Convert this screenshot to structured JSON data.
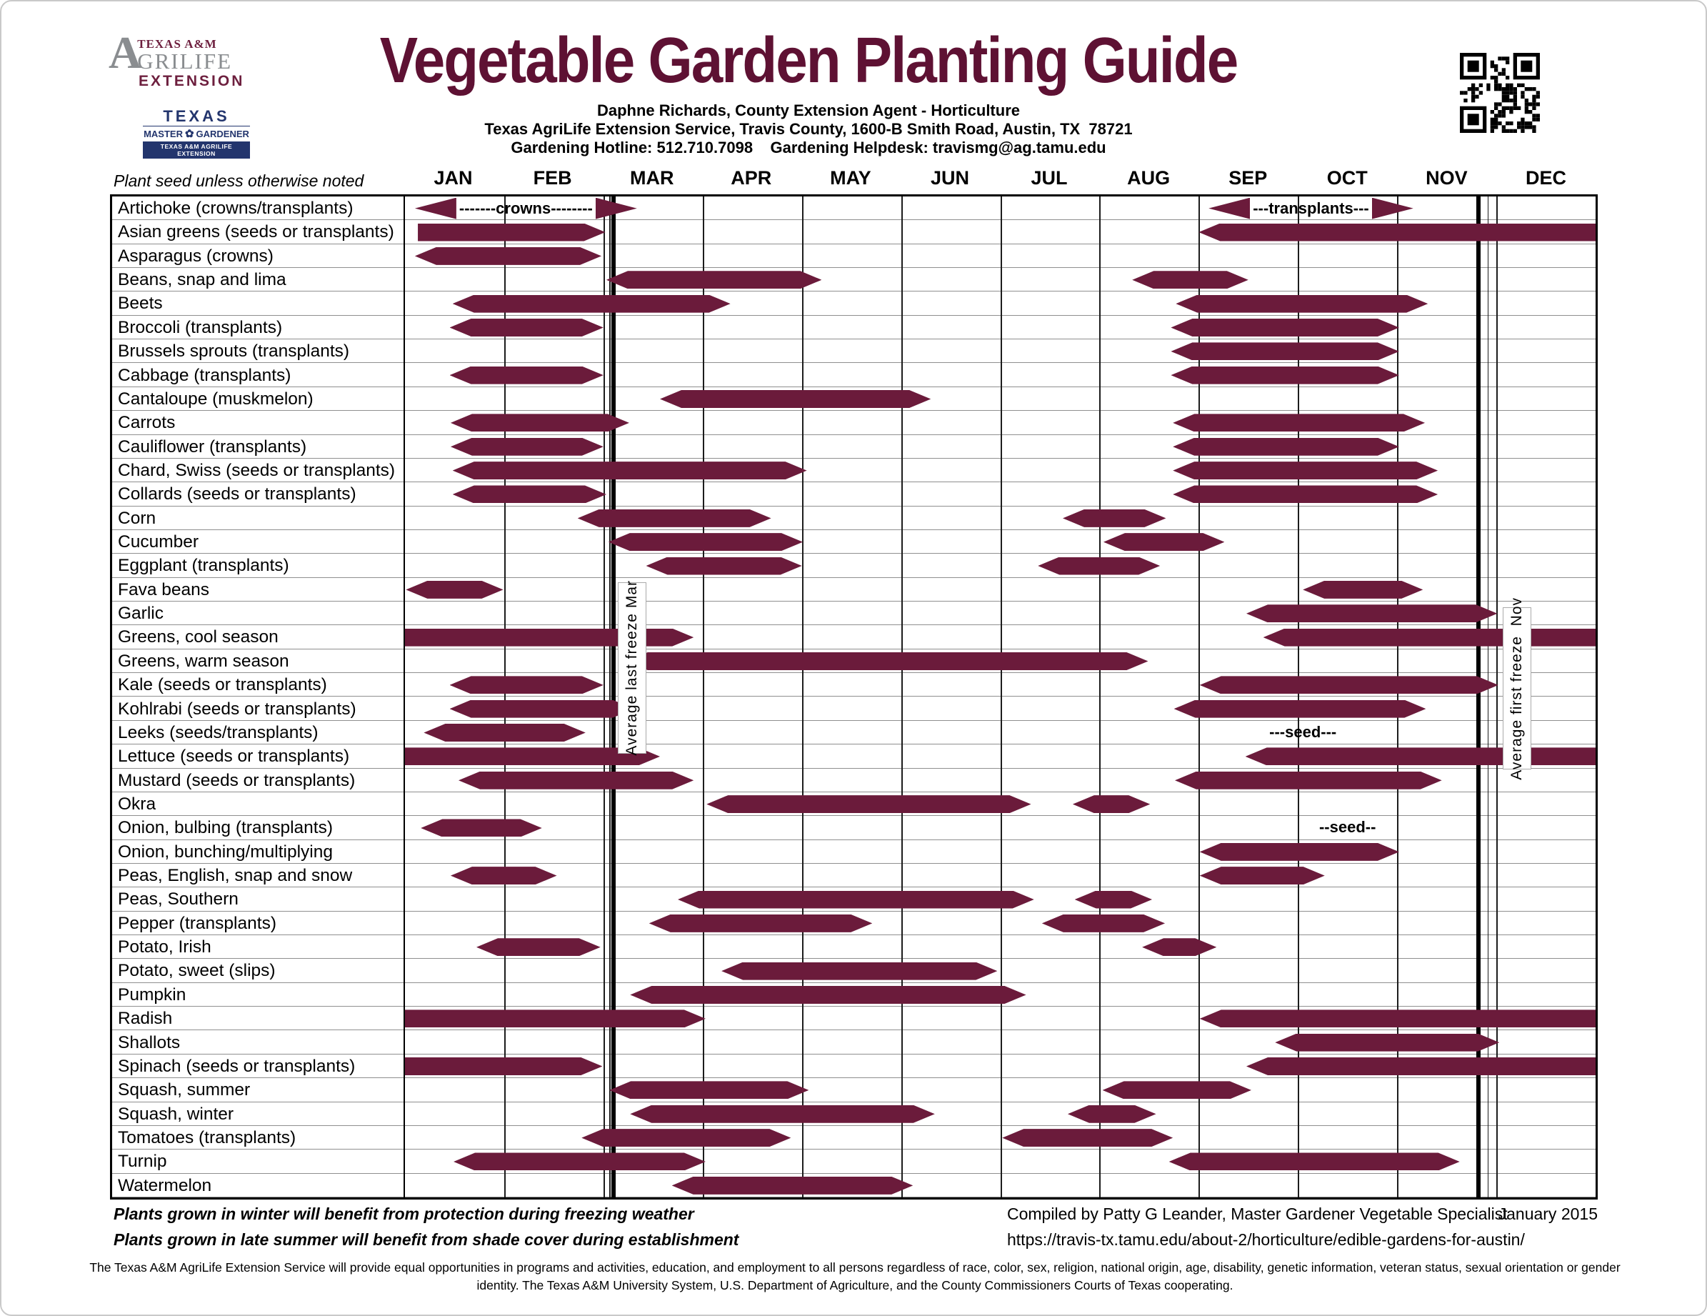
{
  "colors": {
    "bar": "#6b1b3b",
    "title": "#5e1133",
    "agrilife_maroon": "#6d1f3e",
    "agrilife_gray": "#8a8d90",
    "mg_navy": "#23356d"
  },
  "logos": {
    "agrilife": {
      "a": "A",
      "tam": "TEXAS A&M",
      "grilife": "GRILIFE",
      "extension": "EXTENSION"
    },
    "master_gardener": {
      "top": "TEXAS",
      "left": "MASTER",
      "right": "GARDENER",
      "bar": "TEXAS A&M AGRILIFE EXTENSION"
    }
  },
  "header": {
    "title": "Vegetable Garden Planting Guide",
    "subtitle1": "Daphne Richards, County Extension Agent - Horticulture",
    "subtitle2": "Texas AgriLife Extension Service, Travis County, 1600-B Smith Road, Austin, TX  78721",
    "subtitle3": "Gardening Hotline: 512.710.7098    Gardening Helpdesk: travismg@ag.tamu.edu"
  },
  "table_header": {
    "column_note": "Plant seed unless otherwise noted"
  },
  "chart_data": {
    "type": "gantt",
    "unit": "months, 0 = Jan 1, 12 = Dec 31",
    "months": [
      "JAN",
      "FEB",
      "MAR",
      "APR",
      "MAY",
      "JUN",
      "JUL",
      "AUG",
      "SEP",
      "OCT",
      "NOV",
      "DEC"
    ],
    "bar_styles_legend": {
      "both": "arrow both ends",
      "right": "flat left / arrow right",
      "left": "arrow left / flat right",
      "dashed": "opposed arrowheads with dashed text between"
    },
    "freeze_lines": [
      {
        "pos": 2.1,
        "aux_pos": 2.06,
        "label": "Average last freeze Mar",
        "label_center": 2.28,
        "label_top": 810,
        "label_height": 238
      },
      {
        "pos": 10.82,
        "aux_pos": 10.91,
        "label": "Average first freeze  Nov",
        "label_center": 11.2,
        "label_top": 845,
        "label_height": 225
      }
    ],
    "rows": [
      {
        "label": "Artichoke (crowns/transplants)",
        "bars": [
          [
            0.1,
            1.98,
            "dashed",
            "-------crowns--------"
          ],
          [
            8.1,
            9.8,
            "dashed",
            "---transplants---"
          ]
        ],
        "notes": []
      },
      {
        "label": "Asian greens (seeds or transplants)",
        "bars": [
          [
            0.13,
            2.02,
            "right"
          ],
          [
            8.0,
            12,
            "left"
          ]
        ],
        "notes": []
      },
      {
        "label": "Asparagus (crowns)",
        "bars": [
          [
            0.1,
            1.98,
            "both"
          ]
        ],
        "notes": []
      },
      {
        "label": "Beans, snap and lima",
        "bars": [
          [
            2.03,
            4.2,
            "both"
          ],
          [
            7.33,
            8.5,
            "both"
          ]
        ],
        "notes": []
      },
      {
        "label": "Beets",
        "bars": [
          [
            0.48,
            3.28,
            "both"
          ],
          [
            7.77,
            10.31,
            "both"
          ]
        ],
        "notes": []
      },
      {
        "label": "Broccoli (transplants)",
        "bars": [
          [
            0.45,
            2.0,
            "both"
          ],
          [
            7.72,
            10.02,
            "both"
          ]
        ],
        "notes": []
      },
      {
        "label": "Brussels sprouts (transplants)",
        "bars": [
          [
            7.72,
            10.02,
            "both"
          ]
        ],
        "notes": []
      },
      {
        "label": "Cabbage (transplants)",
        "bars": [
          [
            0.45,
            2.0,
            "both"
          ],
          [
            7.72,
            10.02,
            "both"
          ]
        ],
        "notes": []
      },
      {
        "label": "Cantaloupe (muskmelon)",
        "bars": [
          [
            2.57,
            5.3,
            "both"
          ]
        ],
        "notes": []
      },
      {
        "label": "Carrots",
        "bars": [
          [
            0.46,
            2.26,
            "both"
          ],
          [
            7.74,
            10.28,
            "both"
          ]
        ],
        "notes": []
      },
      {
        "label": "Cauliflower (transplants)",
        "bars": [
          [
            0.46,
            2.0,
            "both"
          ],
          [
            7.74,
            10.02,
            "both"
          ]
        ],
        "notes": []
      },
      {
        "label": "Chard, Swiss (seeds or transplants)",
        "bars": [
          [
            0.48,
            4.05,
            "both"
          ],
          [
            7.74,
            10.41,
            "both"
          ]
        ],
        "notes": []
      },
      {
        "label": "Collards (seeds or transplants)",
        "bars": [
          [
            0.48,
            2.03,
            "both"
          ],
          [
            7.74,
            10.41,
            "both"
          ]
        ],
        "notes": []
      },
      {
        "label": "Corn",
        "bars": [
          [
            1.74,
            3.69,
            "both"
          ],
          [
            6.63,
            7.67,
            "both"
          ]
        ],
        "notes": []
      },
      {
        "label": "Cucumber",
        "bars": [
          [
            2.05,
            4.01,
            "both"
          ],
          [
            7.04,
            8.26,
            "both"
          ]
        ],
        "notes": []
      },
      {
        "label": "Eggplant (transplants)",
        "bars": [
          [
            2.43,
            4.0,
            "both"
          ],
          [
            6.38,
            7.61,
            "both"
          ]
        ],
        "notes": []
      },
      {
        "label": "Fava beans",
        "bars": [
          [
            0.01,
            0.99,
            "both"
          ],
          [
            9.05,
            10.26,
            "both"
          ]
        ],
        "notes": []
      },
      {
        "label": "Garlic",
        "bars": [
          [
            8.48,
            11.01,
            "both"
          ]
        ],
        "notes": []
      },
      {
        "label": "Greens, cool season",
        "bars": [
          [
            0,
            2.91,
            "right"
          ],
          [
            8.65,
            12,
            "left"
          ]
        ],
        "notes": []
      },
      {
        "label": "Greens, warm season",
        "bars": [
          [
            2.23,
            7.49,
            "both"
          ]
        ],
        "notes": []
      },
      {
        "label": "Kale (seeds or transplants)",
        "bars": [
          [
            0.45,
            2.0,
            "both"
          ],
          [
            8.01,
            11.02,
            "both"
          ]
        ],
        "notes": []
      },
      {
        "label": "Kohlrabi (seeds or transplants)",
        "bars": [
          [
            0.45,
            2.31,
            "both"
          ],
          [
            7.75,
            10.29,
            "both"
          ]
        ],
        "notes": []
      },
      {
        "label": "Leeks (seeds/transplants)",
        "bars": [
          [
            0.19,
            1.82,
            "both"
          ]
        ],
        "notes": [
          [
            9.05,
            "---seed---"
          ]
        ]
      },
      {
        "label": "Lettuce (seeds or transplants)",
        "bars": [
          [
            0,
            2.57,
            "right"
          ],
          [
            8.47,
            12,
            "left"
          ]
        ],
        "notes": []
      },
      {
        "label": "Mustard (seeds or transplants)",
        "bars": [
          [
            0.54,
            2.91,
            "both"
          ],
          [
            7.76,
            10.45,
            "both"
          ]
        ],
        "notes": []
      },
      {
        "label": "Okra",
        "bars": [
          [
            3.04,
            6.31,
            "both"
          ],
          [
            6.73,
            7.51,
            "both"
          ]
        ],
        "notes": []
      },
      {
        "label": "Onion, bulbing (transplants)",
        "bars": [
          [
            0.16,
            1.38,
            "both"
          ]
        ],
        "notes": [
          [
            9.5,
            "--seed--"
          ]
        ]
      },
      {
        "label": "Onion, bunching/multiplying",
        "bars": [
          [
            8.01,
            10.02,
            "both"
          ]
        ],
        "notes": []
      },
      {
        "label": "Peas, English, snap and snow",
        "bars": [
          [
            0.46,
            1.53,
            "both"
          ],
          [
            8.01,
            9.27,
            "both"
          ]
        ],
        "notes": []
      },
      {
        "label": "Peas, Southern",
        "bars": [
          [
            2.75,
            6.34,
            "both"
          ],
          [
            6.75,
            7.53,
            "both"
          ]
        ],
        "notes": []
      },
      {
        "label": "Pepper (transplants)",
        "bars": [
          [
            2.46,
            4.71,
            "both"
          ],
          [
            6.42,
            7.66,
            "both"
          ]
        ],
        "notes": []
      },
      {
        "label": "Potato, Irish",
        "bars": [
          [
            0.72,
            1.97,
            "both"
          ],
          [
            7.43,
            8.18,
            "both"
          ]
        ],
        "notes": []
      },
      {
        "label": "Potato, sweet (slips)",
        "bars": [
          [
            3.19,
            5.97,
            "both"
          ]
        ],
        "notes": []
      },
      {
        "label": "Pumpkin",
        "bars": [
          [
            2.27,
            6.26,
            "both"
          ]
        ],
        "notes": []
      },
      {
        "label": "Radish",
        "bars": [
          [
            0,
            3.03,
            "right"
          ],
          [
            8.01,
            12,
            "left"
          ]
        ],
        "notes": []
      },
      {
        "label": "Shallots",
        "bars": [
          [
            8.77,
            11.03,
            "both"
          ]
        ],
        "notes": []
      },
      {
        "label": "Spinach (seeds or transplants)",
        "bars": [
          [
            0,
            1.99,
            "right"
          ],
          [
            8.48,
            12,
            "left"
          ]
        ],
        "notes": []
      },
      {
        "label": "Squash, summer",
        "bars": [
          [
            2.06,
            4.07,
            "both"
          ],
          [
            7.03,
            8.53,
            "both"
          ]
        ],
        "notes": []
      },
      {
        "label": "Squash, winter",
        "bars": [
          [
            2.27,
            5.34,
            "both"
          ],
          [
            6.68,
            7.57,
            "both"
          ]
        ],
        "notes": []
      },
      {
        "label": "Tomatoes (transplants)",
        "bars": [
          [
            1.78,
            3.89,
            "both"
          ],
          [
            6.02,
            7.74,
            "both"
          ]
        ],
        "notes": []
      },
      {
        "label": "Turnip",
        "bars": [
          [
            0.49,
            3.03,
            "both"
          ],
          [
            7.7,
            10.63,
            "both"
          ]
        ],
        "notes": []
      },
      {
        "label": "Watermelon",
        "bars": [
          [
            2.69,
            5.12,
            "both"
          ]
        ],
        "notes": []
      }
    ]
  },
  "footer": {
    "note1": "Plants grown in winter will benefit from protection during freezing weather",
    "note2": "Plants grown in late summer will benefit from shade cover during establishment",
    "compiled": "Compiled by Patty G Leander, Master Gardener Vegetable Specialist",
    "date": "January 2015",
    "url": "https://travis-tx.tamu.edu/about-2/horticulture/edible-gardens-for-austin/",
    "disclaimer": "The Texas A&M AgriLife Extension Service will provide equal opportunities in programs and activities, education, and employment to all persons regardless of race, color, sex, religion, national origin, age, disability, genetic information, veteran status, sexual orientation or gender identity. The Texas A&M University System, U.S. Department of Agriculture, and the County Commissioners Courts of Texas cooperating."
  }
}
